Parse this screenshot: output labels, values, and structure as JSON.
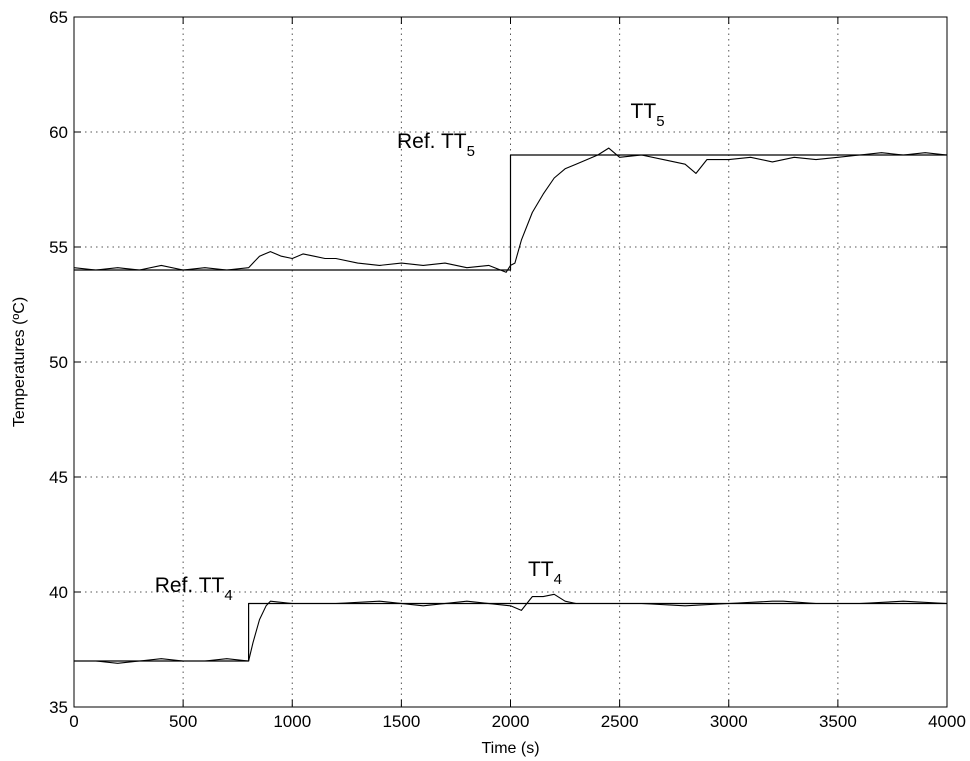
{
  "chart_data": {
    "type": "line",
    "xlabel": "Time (s)",
    "ylabel": "Temperatures (ºC)",
    "xlim": [
      0,
      4000
    ],
    "ylim": [
      35,
      65
    ],
    "x_ticks": [
      0,
      500,
      1000,
      1500,
      2000,
      2500,
      3000,
      3500,
      4000
    ],
    "y_ticks": [
      35,
      40,
      45,
      50,
      55,
      60,
      65
    ],
    "grid": true,
    "legend": "none",
    "colors": {
      "line": "#000000",
      "grid": "#555555"
    },
    "series": [
      {
        "key": "ref_tt5",
        "x": [
          0,
          2000,
          2000,
          4000
        ],
        "y": [
          54,
          54,
          59,
          59
        ],
        "step": true
      },
      {
        "key": "tt5",
        "x": [
          0,
          100,
          200,
          300,
          400,
          500,
          600,
          700,
          800,
          850,
          900,
          950,
          1000,
          1050,
          1100,
          1150,
          1200,
          1300,
          1400,
          1500,
          1600,
          1700,
          1800,
          1900,
          1980,
          2000,
          2020,
          2050,
          2100,
          2150,
          2200,
          2250,
          2300,
          2350,
          2400,
          2450,
          2500,
          2600,
          2700,
          2800,
          2850,
          2900,
          3000,
          3100,
          3200,
          3300,
          3400,
          3500,
          3600,
          3700,
          3800,
          3900,
          4000
        ],
        "y": [
          54.1,
          54.0,
          54.1,
          54.0,
          54.2,
          54.0,
          54.1,
          54.0,
          54.1,
          54.6,
          54.8,
          54.6,
          54.5,
          54.7,
          54.6,
          54.5,
          54.5,
          54.3,
          54.2,
          54.3,
          54.2,
          54.3,
          54.1,
          54.2,
          53.9,
          54.2,
          54.3,
          55.3,
          56.5,
          57.3,
          58.0,
          58.4,
          58.6,
          58.8,
          59.0,
          59.3,
          58.9,
          59.0,
          58.8,
          58.6,
          58.2,
          58.8,
          58.8,
          58.9,
          58.7,
          58.9,
          58.8,
          58.9,
          59.0,
          59.1,
          59.0,
          59.1,
          59.0
        ]
      },
      {
        "key": "ref_tt4",
        "x": [
          0,
          800,
          800,
          4000
        ],
        "y": [
          37,
          37,
          39.5,
          39.5
        ],
        "step": true
      },
      {
        "key": "tt4",
        "x": [
          0,
          100,
          200,
          300,
          400,
          500,
          600,
          700,
          800,
          820,
          850,
          880,
          900,
          1000,
          1200,
          1400,
          1600,
          1800,
          2000,
          2050,
          2100,
          2150,
          2200,
          2250,
          2300,
          2400,
          2600,
          2800,
          3000,
          3200,
          3250,
          3400,
          3600,
          3800,
          4000
        ],
        "y": [
          37.0,
          37.0,
          36.9,
          37.0,
          37.1,
          37.0,
          37.0,
          37.1,
          37.0,
          37.8,
          38.8,
          39.4,
          39.6,
          39.5,
          39.5,
          39.6,
          39.4,
          39.6,
          39.4,
          39.2,
          39.8,
          39.8,
          39.9,
          39.6,
          39.5,
          39.5,
          39.5,
          39.4,
          39.5,
          39.6,
          39.6,
          39.5,
          39.5,
          39.6,
          39.5
        ]
      }
    ],
    "annotations": [
      {
        "key": "tt5_label",
        "main": "TT",
        "sub": "5",
        "x": 2550,
        "y": 60.6
      },
      {
        "key": "ref_tt5_label",
        "main": "Ref. TT",
        "sub": "5",
        "x": 1480,
        "y": 59.3
      },
      {
        "key": "tt4_label",
        "main": "TT",
        "sub": "4",
        "x": 2080,
        "y": 40.7
      },
      {
        "key": "ref_tt4_label",
        "main": "Ref. TT",
        "sub": "4",
        "x": 370,
        "y": 40.0
      }
    ]
  }
}
